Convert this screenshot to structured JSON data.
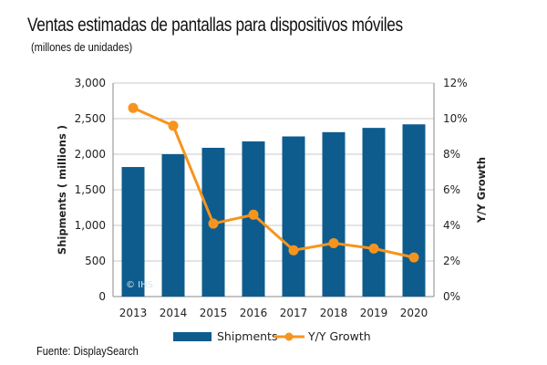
{
  "title": "Ventas estimadas de pantallas para dispositivos móviles",
  "subtitle": "(millones de unidades)",
  "source": "Fuente: DisplaySearch",
  "watermark": "© IHS",
  "colors": {
    "bar": "#0e5c8e",
    "line": "#f7941d",
    "grid": "#c8c8c8",
    "axis": "#888888"
  },
  "chart_data": {
    "type": "bar+line",
    "categories": [
      "2013",
      "2014",
      "2015",
      "2016",
      "2017",
      "2018",
      "2019",
      "2020"
    ],
    "series": [
      {
        "name": "Shipments",
        "type": "bar",
        "axis": "left",
        "values": [
          1820,
          2000,
          2090,
          2180,
          2250,
          2310,
          2370,
          2420
        ]
      },
      {
        "name": "Y/Y Growth",
        "type": "line",
        "axis": "right",
        "values": [
          10.6,
          9.6,
          4.1,
          4.6,
          2.6,
          3.0,
          2.7,
          2.2
        ]
      }
    ],
    "ylabel": "Shipments ( millions )",
    "y2label": "Y/Y Growth",
    "ylim": [
      0,
      3000
    ],
    "y2lim": [
      0,
      12
    ],
    "yticks": [
      "0",
      "500",
      "1,000",
      "1,500",
      "2,000",
      "2,500",
      "3,000"
    ],
    "y2ticks": [
      "0%",
      "2%",
      "4%",
      "6%",
      "8%",
      "10%",
      "12%"
    ],
    "legend": [
      "Shipments",
      "Y/Y Growth"
    ],
    "legend_position": "bottom",
    "grid": true
  }
}
